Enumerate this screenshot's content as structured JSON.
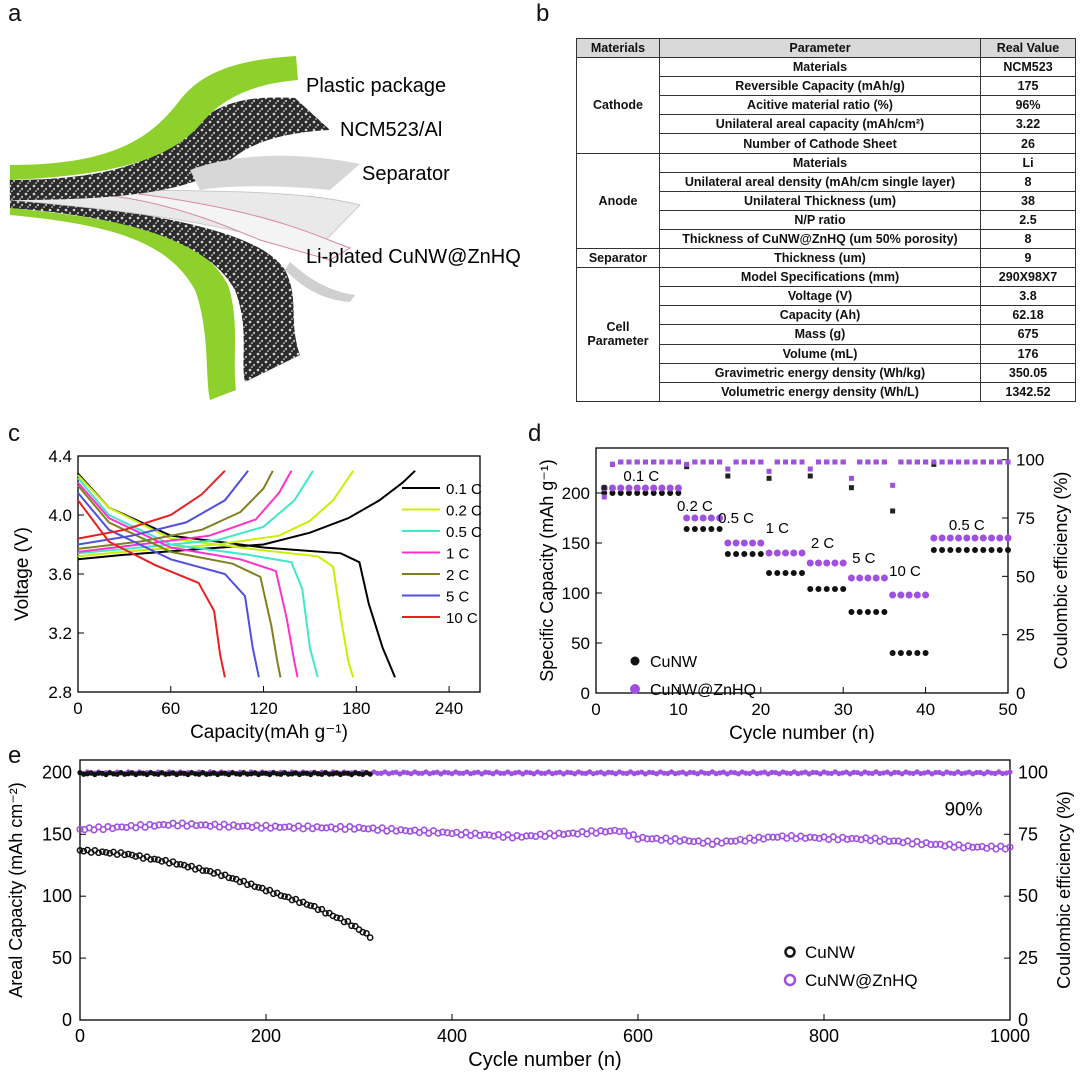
{
  "panel_labels": {
    "a": "a",
    "b": "b",
    "c": "c",
    "d": "d",
    "e": "e"
  },
  "panel_a": {
    "labels": [
      "Plastic package",
      "NCM523/Al",
      "Separator",
      "Li-plated CuNW@ZnHQ"
    ],
    "colors": {
      "package": "#8fd12c",
      "separator": "#e9e9e9",
      "film": "#d7d7d7"
    }
  },
  "panel_b": {
    "headers": [
      "Materials",
      "Parameter",
      "Real Value"
    ],
    "groups": [
      {
        "name": "Cathode",
        "rows": [
          [
            "Materials",
            "NCM523"
          ],
          [
            "Reversible Capacity (mAh/g)",
            "175"
          ],
          [
            "Acitive material ratio (%)",
            "96%"
          ],
          [
            "Unilateral areal capacity (mAh/cm²)",
            "3.22"
          ],
          [
            "Number of Cathode Sheet",
            "26"
          ]
        ]
      },
      {
        "name": "Anode",
        "rows": [
          [
            "Materials",
            "Li"
          ],
          [
            "Unilateral areal density (mAh/cm single layer)",
            "8"
          ],
          [
            "Unilateral Thickness (um)",
            "38"
          ],
          [
            "N/P ratio",
            "2.5"
          ],
          [
            "Thickness of CuNW@ZnHQ (um 50% porosity)",
            "8"
          ]
        ]
      },
      {
        "name": "Separator",
        "rows": [
          [
            "Thickness (um)",
            "9"
          ]
        ]
      },
      {
        "name": "Cell Parameter",
        "rows": [
          [
            "Model Specifications (mm)",
            "290X98X7"
          ],
          [
            "Voltage (V)",
            "3.8"
          ],
          [
            "Capacity (Ah)",
            "62.18"
          ],
          [
            "Mass (g)",
            "675"
          ],
          [
            "Volume (mL)",
            "176"
          ],
          [
            "Gravimetric energy density (Wh/kg)",
            "350.05"
          ],
          [
            "Volumetric energy density  (Wh/L)",
            "1342.52"
          ]
        ]
      }
    ]
  },
  "chart_data": [
    {
      "id": "c",
      "type": "line",
      "xlabel": "Capacity(mAh g⁻¹)",
      "ylabel": "Voltage (V)",
      "xlim": [
        0,
        260
      ],
      "ylim": [
        2.8,
        4.4
      ],
      "xticks": [
        0,
        60,
        120,
        180,
        240
      ],
      "yticks": [
        2.8,
        3.2,
        3.6,
        4.0,
        4.4
      ],
      "series": [
        {
          "name": "0.1 C",
          "color": "#000000",
          "cap": 205,
          "charge": [
            [
              0,
              3.7
            ],
            [
              30,
              3.73
            ],
            [
              80,
              3.77
            ],
            [
              120,
              3.8
            ],
            [
              150,
              3.88
            ],
            [
              175,
              3.98
            ],
            [
              195,
              4.1
            ],
            [
              210,
              4.22
            ],
            [
              218,
              4.3
            ]
          ],
          "discharge": [
            [
              0,
              4.28
            ],
            [
              20,
              4.05
            ],
            [
              60,
              3.86
            ],
            [
              120,
              3.78
            ],
            [
              170,
              3.74
            ],
            [
              182,
              3.68
            ],
            [
              188,
              3.4
            ],
            [
              197,
              3.1
            ],
            [
              205,
              2.9
            ]
          ]
        },
        {
          "name": "0.2 C",
          "color": "#c8f000",
          "cap": 178,
          "charge": [
            [
              0,
              3.72
            ],
            [
              40,
              3.76
            ],
            [
              90,
              3.8
            ],
            [
              130,
              3.86
            ],
            [
              150,
              3.96
            ],
            [
              165,
              4.1
            ],
            [
              178,
              4.3
            ]
          ],
          "discharge": [
            [
              0,
              4.27
            ],
            [
              20,
              4.05
            ],
            [
              60,
              3.84
            ],
            [
              120,
              3.76
            ],
            [
              155,
              3.72
            ],
            [
              165,
              3.65
            ],
            [
              170,
              3.3
            ],
            [
              175,
              3.0
            ],
            [
              178,
              2.9
            ]
          ]
        },
        {
          "name": "0.5 C",
          "color": "#40e8c8",
          "cap": 155,
          "charge": [
            [
              0,
              3.74
            ],
            [
              40,
              3.78
            ],
            [
              90,
              3.83
            ],
            [
              120,
              3.92
            ],
            [
              140,
              4.1
            ],
            [
              152,
              4.3
            ]
          ],
          "discharge": [
            [
              0,
              4.25
            ],
            [
              20,
              4.0
            ],
            [
              60,
              3.8
            ],
            [
              110,
              3.73
            ],
            [
              138,
              3.68
            ],
            [
              145,
              3.5
            ],
            [
              150,
              3.1
            ],
            [
              155,
              2.9
            ]
          ]
        },
        {
          "name": "1 C",
          "color": "#ff33cc",
          "cap": 142,
          "charge": [
            [
              0,
              3.75
            ],
            [
              40,
              3.8
            ],
            [
              85,
              3.86
            ],
            [
              115,
              3.97
            ],
            [
              130,
              4.15
            ],
            [
              138,
              4.3
            ]
          ],
          "discharge": [
            [
              0,
              4.22
            ],
            [
              20,
              3.98
            ],
            [
              60,
              3.78
            ],
            [
              105,
              3.7
            ],
            [
              128,
              3.62
            ],
            [
              135,
              3.3
            ],
            [
              140,
              3.0
            ],
            [
              142,
              2.9
            ]
          ]
        },
        {
          "name": "2 C",
          "color": "#808020",
          "cap": 131,
          "charge": [
            [
              0,
              3.77
            ],
            [
              40,
              3.82
            ],
            [
              80,
              3.9
            ],
            [
              105,
              4.02
            ],
            [
              120,
              4.18
            ],
            [
              126,
              4.3
            ]
          ],
          "discharge": [
            [
              0,
              4.2
            ],
            [
              20,
              3.95
            ],
            [
              60,
              3.75
            ],
            [
              100,
              3.67
            ],
            [
              118,
              3.58
            ],
            [
              125,
              3.25
            ],
            [
              129,
              3.0
            ],
            [
              131,
              2.9
            ]
          ]
        },
        {
          "name": "5 C",
          "color": "#5050e0",
          "cap": 117,
          "charge": [
            [
              0,
              3.8
            ],
            [
              35,
              3.86
            ],
            [
              70,
              3.95
            ],
            [
              95,
              4.1
            ],
            [
              110,
              4.3
            ]
          ],
          "discharge": [
            [
              0,
              4.15
            ],
            [
              20,
              3.9
            ],
            [
              60,
              3.7
            ],
            [
              95,
              3.6
            ],
            [
              108,
              3.45
            ],
            [
              113,
              3.1
            ],
            [
              117,
              2.9
            ]
          ]
        },
        {
          "name": "10 C",
          "color": "#e82020",
          "cap": 95,
          "charge": [
            [
              0,
              3.84
            ],
            [
              30,
              3.9
            ],
            [
              60,
              4.0
            ],
            [
              80,
              4.14
            ],
            [
              95,
              4.3
            ]
          ],
          "discharge": [
            [
              0,
              4.1
            ],
            [
              20,
              3.82
            ],
            [
              50,
              3.66
            ],
            [
              78,
              3.54
            ],
            [
              88,
              3.35
            ],
            [
              92,
              3.05
            ],
            [
              95,
              2.9
            ]
          ]
        }
      ]
    },
    {
      "id": "d",
      "type": "scatter",
      "xlabel": "Cycle number (n)",
      "ylabel": "Specific Capacity (mAh g⁻¹)",
      "y2label": "Coulombic efficiency (%)",
      "xlim": [
        0,
        50
      ],
      "ylim": [
        0,
        245
      ],
      "y2lim": [
        0,
        105
      ],
      "xticks": [
        0,
        10,
        20,
        30,
        40,
        50
      ],
      "yticks": [
        0,
        50,
        100,
        150,
        200
      ],
      "y2ticks": [
        0,
        25,
        50,
        75,
        100
      ],
      "rate_labels": [
        {
          "text": "0.1 C",
          "x": 5.5,
          "y": 212
        },
        {
          "text": "0.2 C",
          "x": 12.0,
          "y": 182
        },
        {
          "text": "0.5 C",
          "x": 17.0,
          "y": 170
        },
        {
          "text": "1 C",
          "x": 22.0,
          "y": 160
        },
        {
          "text": "2 C",
          "x": 27.5,
          "y": 145
        },
        {
          "text": "5 C",
          "x": 32.5,
          "y": 130
        },
        {
          "text": "10 C",
          "x": 37.5,
          "y": 117
        },
        {
          "text": "0.5 C",
          "x": 45.0,
          "y": 163
        }
      ],
      "steps": [
        {
          "from": 1,
          "to": 10,
          "cunw": 200,
          "zn": 205
        },
        {
          "from": 11,
          "to": 15,
          "cunw": 164,
          "zn": 175
        },
        {
          "from": 16,
          "to": 20,
          "cunw": 139,
          "zn": 150
        },
        {
          "from": 21,
          "to": 25,
          "cunw": 120,
          "zn": 140
        },
        {
          "from": 26,
          "to": 30,
          "cunw": 104,
          "zn": 130
        },
        {
          "from": 31,
          "to": 35,
          "cunw": 81,
          "zn": 115
        },
        {
          "from": 36,
          "to": 40,
          "cunw": 40,
          "zn": 98
        },
        {
          "from": 41,
          "to": 50,
          "cunw": 143,
          "zn": 155
        }
      ],
      "ce_cunw": [
        88,
        98,
        99,
        99,
        99,
        99,
        99,
        99,
        99,
        99,
        97,
        99,
        99,
        99,
        99,
        93,
        99,
        99,
        99,
        99,
        92,
        99,
        99,
        99,
        99,
        93,
        99,
        99,
        99,
        99,
        88,
        99,
        99,
        99,
        99,
        78,
        99,
        99,
        99,
        99,
        98,
        99,
        99,
        99,
        99,
        99,
        99,
        99,
        99,
        99
      ],
      "ce_zn": [
        84,
        98,
        99,
        99,
        99,
        99,
        99,
        99,
        99,
        99,
        98,
        99,
        99,
        99,
        99,
        96,
        99,
        99,
        99,
        99,
        95,
        99,
        99,
        99,
        99,
        96,
        99,
        99,
        99,
        99,
        92,
        99,
        99,
        99,
        99,
        89,
        99,
        99,
        99,
        99,
        99,
        99,
        99,
        99,
        99,
        99,
        99,
        99,
        99,
        99
      ],
      "legend": [
        "CuNW",
        "CuNW@ZnHQ"
      ],
      "colors": {
        "cunw": "#111111",
        "zn": "#a050e0"
      }
    },
    {
      "id": "e",
      "type": "scatter",
      "xlabel": "Cycle number (n)",
      "ylabel": "Areal Capacity (mAh cm⁻²)",
      "y2label": "Coulombic efficiency (%)",
      "xlim": [
        0,
        1000
      ],
      "ylim": [
        0,
        210
      ],
      "y2lim": [
        0,
        105
      ],
      "xticks": [
        0,
        200,
        400,
        600,
        800,
        1000
      ],
      "yticks": [
        0,
        50,
        100,
        150,
        200
      ],
      "y2ticks": [
        0,
        25,
        50,
        75,
        100
      ],
      "annotation": "90%",
      "cunw_capacity": [
        [
          0,
          137
        ],
        [
          50,
          134
        ],
        [
          100,
          127
        ],
        [
          150,
          118
        ],
        [
          200,
          105
        ],
        [
          250,
          92
        ],
        [
          290,
          78
        ],
        [
          315,
          66
        ]
      ],
      "zn_capacity": [
        [
          0,
          154
        ],
        [
          50,
          156
        ],
        [
          100,
          158
        ],
        [
          200,
          156
        ],
        [
          300,
          155
        ],
        [
          400,
          151
        ],
        [
          470,
          148
        ],
        [
          580,
          153
        ],
        [
          600,
          147
        ],
        [
          650,
          145
        ],
        [
          680,
          143
        ],
        [
          750,
          148
        ],
        [
          850,
          146
        ],
        [
          950,
          140
        ],
        [
          1000,
          139
        ]
      ],
      "cunw_ce": 99.5,
      "cunw_ce_end": 315,
      "zn_ce": 99.8,
      "legend": [
        "CuNW",
        "CuNW@ZnHQ"
      ],
      "colors": {
        "cunw": "#111111",
        "zn": "#a050e0"
      }
    }
  ]
}
